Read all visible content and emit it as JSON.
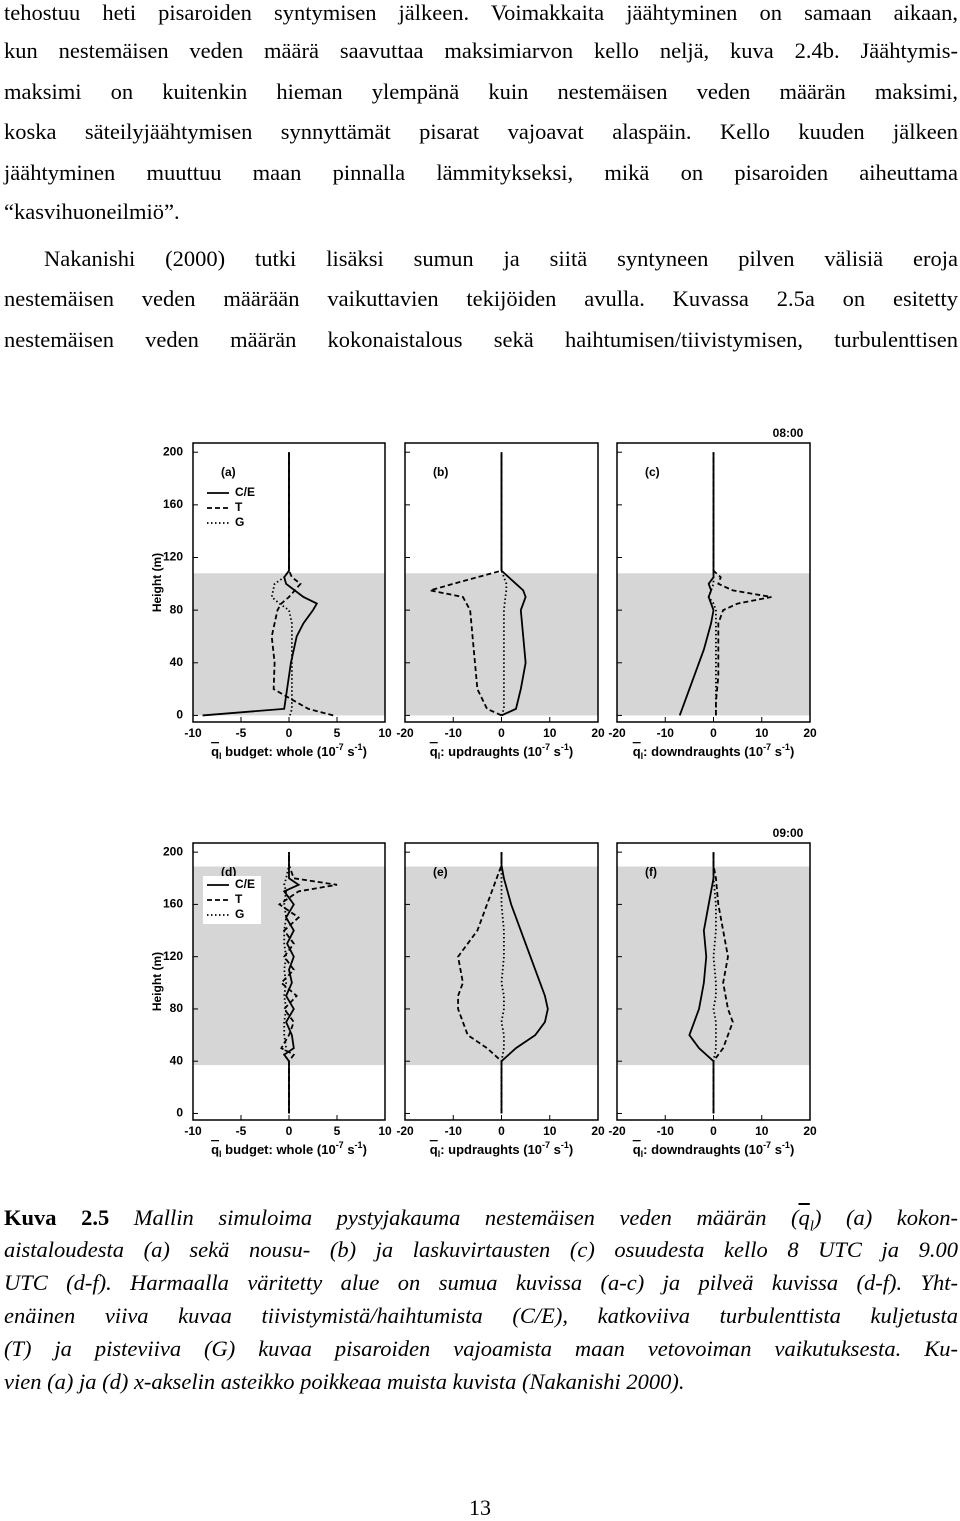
{
  "paragraphs": [
    {
      "indent": false,
      "lines": [
        "tehostuu heti pisaroiden syntymisen jälkeen. Voimakkaita jäähtyminen on samaan aikaan,",
        "kun nestemäisen veden määrä saavuttaa maksimiarvon kello neljä, kuva 2.4b. Jäähtymis-",
        "maksimi on kuitenkin hieman ylempänä kuin nestemäisen veden määrän maksimi,",
        "koska säteilyjäähtymisen synnyttämät pisarat vajoavat alaspäin. Kello kuuden jälkeen",
        "jäähtyminen muuttuu maan pinnalla lämmitykseksi, mikä on pisaroiden aiheuttama",
        "“kasvihuoneilmiö”."
      ]
    },
    {
      "indent": true,
      "lines": [
        "Nakanishi (2000) tutki lisäksi sumun ja siitä syntyneen pilven välisiä eroja",
        "nestemäisen veden määrään vaikuttavien tekijöiden avulla. Kuvassa 2.5a on esitetty",
        "nestemäisen veden määrän kokonaistalous sekä haihtumisen/tiivistymisen, turbulenttisen"
      ]
    }
  ],
  "chart_data": [
    {
      "type": "line",
      "label": "(a)",
      "ylabel": "Height (m)",
      "ytick_labels": true,
      "legend": true,
      "xlim": [
        -10,
        10
      ],
      "xticks": [
        -10,
        -5,
        0,
        5,
        10
      ],
      "ylim": [
        -5,
        207
      ],
      "yticks": [
        0,
        40,
        80,
        120,
        160,
        200
      ],
      "xlabel": [
        "q",
        "l",
        " budget: whole (10",
        "-7",
        " s",
        "-1",
        ")"
      ],
      "shaded": [
        0,
        108
      ],
      "shade_color": "#d6d6d6",
      "y": [
        0,
        5,
        20,
        40,
        60,
        70,
        80,
        85,
        90,
        100,
        105,
        110,
        120,
        200
      ],
      "series": [
        {
          "name": "C/E",
          "color": "#000000",
          "dash": "solid",
          "values": [
            -9,
            -0.5,
            -0.2,
            0.2,
            0.8,
            1.5,
            2.5,
            2.9,
            1.5,
            -0.3,
            -0.5,
            0,
            0,
            0
          ]
        },
        {
          "name": "T",
          "color": "#000000",
          "dash": "dashed",
          "values": [
            4.6,
            2,
            -1.6,
            -1.5,
            -1.8,
            -1.5,
            -1.2,
            -0.8,
            0,
            1.2,
            0.3,
            0,
            0,
            0
          ]
        },
        {
          "name": "G",
          "color": "#000000",
          "dash": "dotted",
          "values": [
            0.1,
            0.3,
            0.3,
            0.3,
            0.3,
            0.3,
            0,
            -1,
            -1.8,
            -1.5,
            -0.5,
            0,
            0,
            0
          ]
        }
      ]
    },
    {
      "type": "line",
      "label": "(b)",
      "ytick_labels": false,
      "legend": false,
      "xlim": [
        -20,
        20
      ],
      "xticks": [
        -20,
        -10,
        0,
        10,
        20
      ],
      "ylim": [
        -5,
        207
      ],
      "yticks": [
        0,
        40,
        80,
        120,
        160,
        200
      ],
      "xlabel": [
        "q",
        "l",
        ": updraughts (10",
        "-7",
        " s",
        "-1",
        ")"
      ],
      "shaded": [
        0,
        108
      ],
      "shade_color": "#d6d6d6",
      "y": [
        0,
        5,
        20,
        40,
        60,
        80,
        90,
        95,
        100,
        105,
        110,
        120,
        200
      ],
      "series": [
        {
          "color": "#000000",
          "dash": "solid",
          "values": [
            0,
            3,
            4,
            5,
            4.5,
            4,
            5,
            4.5,
            3,
            1.5,
            0,
            0,
            0
          ]
        },
        {
          "color": "#000000",
          "dash": "dashed",
          "values": [
            0,
            -3,
            -5,
            -5.5,
            -6,
            -6.5,
            -8,
            -14.8,
            -10,
            -5,
            0,
            0,
            0
          ]
        },
        {
          "color": "#000000",
          "dash": "dotted",
          "values": [
            0,
            0.5,
            0.5,
            0.5,
            0.5,
            0.5,
            0.8,
            1,
            1,
            0.5,
            0,
            0,
            0
          ]
        }
      ]
    },
    {
      "type": "line",
      "label": "(c)",
      "annotation": "08:00",
      "ytick_labels": false,
      "legend": false,
      "xlim": [
        -20,
        20
      ],
      "xticks": [
        -20,
        -10,
        0,
        10,
        20
      ],
      "ylim": [
        -5,
        207
      ],
      "yticks": [
        0,
        40,
        80,
        120,
        160,
        200
      ],
      "xlabel": [
        "q",
        "l",
        ": downdraughts (10",
        "-7",
        " s",
        "-1",
        ")"
      ],
      "shaded": [
        0,
        108
      ],
      "shade_color": "#d6d6d6",
      "y": [
        0,
        10,
        30,
        50,
        70,
        80,
        85,
        90,
        95,
        100,
        105,
        110,
        120,
        200
      ],
      "series": [
        {
          "color": "#000000",
          "dash": "solid",
          "values": [
            -7,
            -6,
            -4,
            -2,
            -0.5,
            0,
            -0.5,
            -1,
            -0.5,
            -1,
            0,
            0,
            0,
            0
          ]
        },
        {
          "color": "#000000",
          "dash": "dashed",
          "values": [
            0.5,
            0.5,
            1,
            1,
            1,
            2,
            5,
            12,
            4,
            1,
            1.5,
            0,
            0,
            0
          ]
        },
        {
          "color": "#000000",
          "dash": "dotted",
          "values": [
            0.5,
            0.5,
            0.5,
            0.5,
            0.5,
            0.5,
            0,
            -1,
            -0.5,
            0,
            0,
            0,
            0,
            0
          ]
        }
      ]
    },
    {
      "type": "line",
      "label": "(d)",
      "ylabel": "Height (m)",
      "ytick_labels": true,
      "legend": true,
      "xlim": [
        -10,
        10
      ],
      "xticks": [
        -10,
        -5,
        0,
        5,
        10
      ],
      "ylim": [
        -5,
        207
      ],
      "yticks": [
        0,
        40,
        80,
        120,
        160,
        200
      ],
      "xlabel": [
        "q",
        "l",
        " budget: whole (10",
        "-7",
        " s",
        "-1",
        ")"
      ],
      "shaded": [
        37,
        189
      ],
      "shade_color": "#d6d6d6",
      "y": [
        0,
        40,
        45,
        50,
        60,
        70,
        80,
        90,
        100,
        110,
        120,
        130,
        140,
        150,
        160,
        170,
        175,
        180,
        190,
        200
      ],
      "series": [
        {
          "name": "C/E",
          "color": "#000000",
          "dash": "solid",
          "values": [
            0,
            0,
            -0.5,
            0.5,
            0.3,
            -0.3,
            0.5,
            -0.3,
            0.3,
            0,
            0.5,
            -0.2,
            0.5,
            -0.3,
            0.5,
            -0.5,
            1,
            0,
            0,
            0
          ]
        },
        {
          "name": "T",
          "color": "#000000",
          "dash": "dashed",
          "values": [
            0,
            0,
            0.5,
            -0.8,
            0,
            0.5,
            -0.5,
            0.8,
            -0.8,
            0.5,
            -0.5,
            0.5,
            -0.5,
            1,
            -1,
            1,
            5,
            0.5,
            0,
            0
          ]
        },
        {
          "name": "G",
          "color": "#000000",
          "dash": "dotted",
          "values": [
            0,
            0,
            -0.5,
            -0.3,
            -0.5,
            -0.5,
            -0.3,
            -0.5,
            -0.3,
            -0.5,
            -0.3,
            -0.5,
            -0.5,
            -0.3,
            -0.5,
            -0.3,
            -0.5,
            -0.3,
            0,
            0
          ]
        }
      ]
    },
    {
      "type": "line",
      "label": "(e)",
      "ytick_labels": false,
      "legend": false,
      "xlim": [
        -20,
        20
      ],
      "xticks": [
        -20,
        -10,
        0,
        10,
        20
      ],
      "ylim": [
        -5,
        207
      ],
      "yticks": [
        0,
        40,
        80,
        120,
        160,
        200
      ],
      "xlabel": [
        "q",
        "l",
        ": updraughts (10",
        "-7",
        " s",
        "-1",
        ")"
      ],
      "shaded": [
        37,
        189
      ],
      "shade_color": "#d6d6d6",
      "y": [
        0,
        40,
        50,
        60,
        70,
        80,
        90,
        100,
        120,
        140,
        160,
        180,
        190,
        200
      ],
      "series": [
        {
          "color": "#000000",
          "dash": "solid",
          "values": [
            0,
            0,
            3,
            7,
            9,
            9.6,
            9,
            8,
            6,
            4,
            2,
            0.5,
            0,
            0
          ]
        },
        {
          "color": "#000000",
          "dash": "dashed",
          "values": [
            0,
            0,
            -3,
            -7,
            -8,
            -9,
            -9,
            -8,
            -9,
            -5,
            -3,
            -1,
            0,
            0
          ]
        },
        {
          "color": "#000000",
          "dash": "dotted",
          "values": [
            0,
            0,
            0.5,
            0.5,
            0,
            0.5,
            0.5,
            0,
            0.5,
            0.5,
            0,
            0,
            0,
            0
          ]
        }
      ]
    },
    {
      "type": "line",
      "label": "(f)",
      "annotation": "09:00",
      "ytick_labels": false,
      "legend": false,
      "xlim": [
        -20,
        20
      ],
      "xticks": [
        -20,
        -10,
        0,
        10,
        20
      ],
      "ylim": [
        -5,
        207
      ],
      "yticks": [
        0,
        40,
        80,
        120,
        160,
        200
      ],
      "xlabel": [
        "q",
        "l",
        ": downdraughts (10",
        "-7",
        " s",
        "-1",
        ")"
      ],
      "shaded": [
        37,
        189
      ],
      "shade_color": "#d6d6d6",
      "y": [
        0,
        40,
        50,
        60,
        70,
        80,
        90,
        100,
        120,
        140,
        160,
        180,
        190,
        200
      ],
      "series": [
        {
          "color": "#000000",
          "dash": "solid",
          "values": [
            0,
            0,
            -3,
            -5,
            -4,
            -3,
            -2.5,
            -2,
            -1.5,
            -2,
            -1,
            0,
            0,
            0
          ]
        },
        {
          "color": "#000000",
          "dash": "dashed",
          "values": [
            0,
            0,
            2,
            3,
            4,
            3,
            2.5,
            2,
            3,
            2,
            1,
            0.5,
            0,
            0
          ]
        },
        {
          "color": "#000000",
          "dash": "dotted",
          "values": [
            0,
            0,
            0.5,
            0.5,
            0.5,
            0,
            0.5,
            0.5,
            0,
            0.5,
            0.5,
            0,
            0,
            0
          ]
        }
      ]
    }
  ],
  "caption": {
    "label": "Kuva 2.5",
    "first_line": [
      "Mallin simuloima pystyjakauma nestemäisen veden määrän (",
      "q",
      "l",
      ") (a) kokon-"
    ],
    "lines": [
      "aistaloudesta (a) sekä nousu- (b) ja laskuvirtausten (c) osuudesta kello 8 UTC ja 9.00",
      "UTC (d-f). Harmaalla väritetty alue on sumua kuvissa (a-c) ja pilveä kuvissa (d-f). Yht-",
      "enäinen viiva kuvaa tiivistymistä/haihtumista (C/E), katkoviiva turbulenttista kuljetusta",
      "(T) ja pisteviiva (G) kuvaa pisaroiden vajoamista maan vetovoiman vaikutuksesta. Ku-",
      "vien (a) ja (d) x-akselin asteikko poikkeaa muista kuvista (Nakanishi 2000)."
    ]
  },
  "page_number": "13"
}
